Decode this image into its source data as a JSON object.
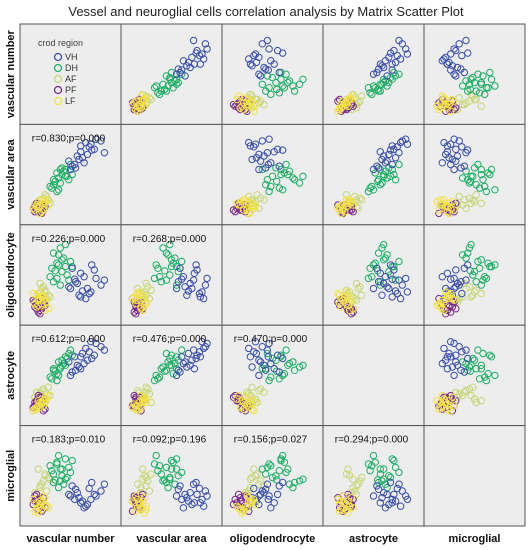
{
  "title": "Vessel and neuroglial cells correlation analysis by Matrix Scatter Plot",
  "chart_data": {
    "type": "scatter",
    "variables": [
      "vascular number",
      "vascular area",
      "oligodendrocyte",
      "astrocyte",
      "microglial"
    ],
    "legend": {
      "title": "crod region",
      "placement": "top-left",
      "entries": [
        {
          "name": "VH",
          "color": "#3b4fa8"
        },
        {
          "name": "DH",
          "color": "#1fae66"
        },
        {
          "name": "AF",
          "color": "#c8d67a"
        },
        {
          "name": "PF",
          "color": "#7a2a86"
        },
        {
          "name": "LF",
          "color": "#f2e24a"
        }
      ]
    },
    "correlations": [
      {
        "row": 1,
        "col": 0,
        "text": "r=0.830;p=0.000"
      },
      {
        "row": 2,
        "col": 0,
        "text": "r=0.226;p=0.000"
      },
      {
        "row": 2,
        "col": 1,
        "text": "r=0.268;p=0.000"
      },
      {
        "row": 3,
        "col": 0,
        "text": "r=0.612;p=0.000"
      },
      {
        "row": 3,
        "col": 1,
        "text": "r=0.476;p=0.000"
      },
      {
        "row": 3,
        "col": 2,
        "text": "r=0.470;p=0.000"
      },
      {
        "row": 4,
        "col": 0,
        "text": "r=0.183;p=0.010"
      },
      {
        "row": 4,
        "col": 1,
        "text": "r=0.092;p=0.196"
      },
      {
        "row": 4,
        "col": 2,
        "text": "r=0.156;p=0.027"
      },
      {
        "row": 4,
        "col": 3,
        "text": "r=0.294;p=0.000"
      }
    ],
    "series": [
      {
        "name": "VH",
        "points": [
          [
            0.55,
            0.62,
            0.45,
            0.72,
            0.22
          ],
          [
            0.72,
            0.83,
            0.28,
            0.78,
            0.35
          ],
          [
            0.62,
            0.77,
            0.52,
            0.58,
            0.18
          ],
          [
            0.48,
            0.66,
            0.36,
            0.66,
            0.28
          ],
          [
            0.68,
            0.88,
            0.22,
            0.82,
            0.14
          ],
          [
            0.75,
            0.79,
            0.62,
            0.7,
            0.42
          ],
          [
            0.58,
            0.72,
            0.4,
            0.62,
            0.3
          ],
          [
            0.64,
            0.7,
            0.31,
            0.76,
            0.2
          ],
          [
            0.8,
            0.92,
            0.46,
            0.88,
            0.26
          ],
          [
            0.52,
            0.6,
            0.58,
            0.54,
            0.38
          ],
          [
            0.7,
            0.74,
            0.34,
            0.68,
            0.16
          ],
          [
            0.6,
            0.68,
            0.26,
            0.6,
            0.24
          ],
          [
            0.86,
            0.9,
            0.38,
            0.84,
            0.32
          ],
          [
            0.66,
            0.64,
            0.48,
            0.64,
            0.12
          ],
          [
            0.74,
            0.86,
            0.3,
            0.9,
            0.22
          ],
          [
            0.56,
            0.58,
            0.42,
            0.56,
            0.34
          ],
          [
            0.78,
            0.8,
            0.56,
            0.74,
            0.28
          ],
          [
            0.62,
            0.84,
            0.24,
            0.72,
            0.18
          ],
          [
            0.9,
            0.76,
            0.44,
            0.8,
            0.4
          ],
          [
            0.5,
            0.56,
            0.34,
            0.5,
            0.26
          ]
        ]
      },
      {
        "name": "DH",
        "points": [
          [
            0.32,
            0.42,
            0.55,
            0.55,
            0.45
          ],
          [
            0.4,
            0.5,
            0.68,
            0.62,
            0.58
          ],
          [
            0.26,
            0.36,
            0.48,
            0.48,
            0.62
          ],
          [
            0.36,
            0.46,
            0.74,
            0.66,
            0.36
          ],
          [
            0.44,
            0.56,
            0.6,
            0.72,
            0.7
          ],
          [
            0.3,
            0.38,
            0.42,
            0.58,
            0.52
          ],
          [
            0.38,
            0.4,
            0.82,
            0.6,
            0.44
          ],
          [
            0.34,
            0.52,
            0.64,
            0.52,
            0.66
          ],
          [
            0.46,
            0.48,
            0.5,
            0.7,
            0.48
          ],
          [
            0.28,
            0.34,
            0.58,
            0.46,
            0.56
          ],
          [
            0.42,
            0.54,
            0.7,
            0.64,
            0.4
          ],
          [
            0.48,
            0.44,
            0.44,
            0.76,
            0.6
          ],
          [
            0.36,
            0.32,
            0.62,
            0.5,
            0.74
          ],
          [
            0.4,
            0.58,
            0.54,
            0.68,
            0.5
          ],
          [
            0.3,
            0.44,
            0.76,
            0.56,
            0.42
          ],
          [
            0.5,
            0.62,
            0.66,
            0.8,
            0.54
          ],
          [
            0.34,
            0.3,
            0.46,
            0.44,
            0.64
          ],
          [
            0.44,
            0.48,
            0.86,
            0.62,
            0.46
          ],
          [
            0.38,
            0.56,
            0.38,
            0.58,
            0.58
          ],
          [
            0.52,
            0.5,
            0.6,
            0.74,
            0.68
          ]
        ]
      },
      {
        "name": "AF",
        "points": [
          [
            0.14,
            0.14,
            0.24,
            0.26,
            0.36
          ],
          [
            0.2,
            0.18,
            0.3,
            0.22,
            0.5
          ],
          [
            0.1,
            0.12,
            0.2,
            0.3,
            0.28
          ],
          [
            0.18,
            0.22,
            0.36,
            0.34,
            0.44
          ],
          [
            0.12,
            0.16,
            0.28,
            0.2,
            0.58
          ],
          [
            0.22,
            0.24,
            0.22,
            0.28,
            0.32
          ],
          [
            0.16,
            0.1,
            0.34,
            0.32,
            0.4
          ],
          [
            0.24,
            0.2,
            0.26,
            0.36,
            0.48
          ],
          [
            0.08,
            0.14,
            0.18,
            0.24,
            0.3
          ],
          [
            0.2,
            0.26,
            0.32,
            0.18,
            0.52
          ],
          [
            0.14,
            0.2,
            0.4,
            0.3,
            0.38
          ],
          [
            0.26,
            0.16,
            0.24,
            0.26,
            0.46
          ]
        ]
      },
      {
        "name": "PF",
        "points": [
          [
            0.1,
            0.08,
            0.14,
            0.18,
            0.2
          ],
          [
            0.16,
            0.12,
            0.1,
            0.24,
            0.14
          ],
          [
            0.08,
            0.06,
            0.18,
            0.14,
            0.26
          ],
          [
            0.14,
            0.1,
            0.08,
            0.2,
            0.18
          ],
          [
            0.12,
            0.14,
            0.16,
            0.16,
            0.1
          ],
          [
            0.18,
            0.08,
            0.12,
            0.22,
            0.24
          ],
          [
            0.06,
            0.1,
            0.2,
            0.12,
            0.16
          ],
          [
            0.12,
            0.06,
            0.06,
            0.26,
            0.22
          ],
          [
            0.2,
            0.12,
            0.14,
            0.1,
            0.12
          ],
          [
            0.1,
            0.16,
            0.1,
            0.2,
            0.28
          ],
          [
            0.16,
            0.04,
            0.22,
            0.14,
            0.08
          ],
          [
            0.08,
            0.12,
            0.12,
            0.18,
            0.2
          ],
          [
            0.14,
            0.08,
            0.04,
            0.24,
            0.16
          ],
          [
            0.18,
            0.14,
            0.18,
            0.08,
            0.24
          ]
        ]
      },
      {
        "name": "LF",
        "points": [
          [
            0.12,
            0.1,
            0.2,
            0.14,
            0.12
          ],
          [
            0.18,
            0.16,
            0.26,
            0.2,
            0.2
          ],
          [
            0.08,
            0.08,
            0.16,
            0.1,
            0.08
          ],
          [
            0.14,
            0.12,
            0.3,
            0.18,
            0.16
          ],
          [
            0.2,
            0.18,
            0.22,
            0.24,
            0.24
          ],
          [
            0.1,
            0.14,
            0.12,
            0.12,
            0.1
          ],
          [
            0.16,
            0.06,
            0.24,
            0.16,
            0.18
          ],
          [
            0.22,
            0.2,
            0.18,
            0.22,
            0.14
          ],
          [
            0.06,
            0.1,
            0.28,
            0.08,
            0.22
          ],
          [
            0.12,
            0.18,
            0.14,
            0.2,
            0.06
          ],
          [
            0.18,
            0.08,
            0.2,
            0.14,
            0.26
          ],
          [
            0.24,
            0.14,
            0.1,
            0.26,
            0.12
          ],
          [
            0.1,
            0.12,
            0.26,
            0.1,
            0.18
          ],
          [
            0.16,
            0.2,
            0.16,
            0.18,
            0.1
          ],
          [
            0.14,
            0.04,
            0.22,
            0.12,
            0.2
          ],
          [
            0.2,
            0.16,
            0.08,
            0.22,
            0.14
          ]
        ]
      }
    ]
  }
}
